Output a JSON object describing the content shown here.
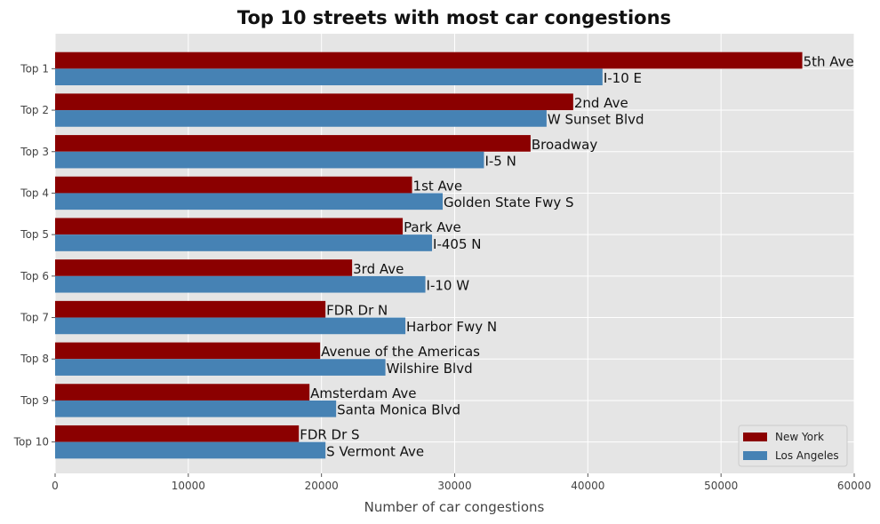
{
  "chart_data": {
    "type": "bar",
    "orientation": "horizontal",
    "title": "Top 10 streets with most car congestions",
    "xlabel": "Number of car congestions",
    "ylabel": "",
    "xlim": [
      0,
      60000
    ],
    "x_ticks": [
      "0",
      "10000",
      "20000",
      "30000",
      "40000",
      "50000",
      "60000"
    ],
    "categories": [
      "Top 1",
      "Top 2",
      "Top 3",
      "Top 4",
      "Top 5",
      "Top 6",
      "Top 7",
      "Top 8",
      "Top 9",
      "Top 10"
    ],
    "grid": true,
    "legend_position": "lower-right",
    "series": [
      {
        "name": "New York",
        "color": "#8b0000",
        "values": [
          56100,
          38900,
          35700,
          26800,
          26100,
          22300,
          20300,
          19900,
          19100,
          18300
        ],
        "labels": [
          "5th Ave",
          "2nd Ave",
          "Broadway",
          "1st Ave",
          "Park Ave",
          "3rd Ave",
          "FDR Dr N",
          "Avenue of the Americas",
          "Amsterdam Ave",
          "FDR Dr S"
        ]
      },
      {
        "name": "Los Angeles",
        "color": "#4682b4",
        "values": [
          41100,
          36900,
          32200,
          29100,
          28300,
          27800,
          26300,
          24800,
          21100,
          20300
        ],
        "labels": [
          "I-10 E",
          "W Sunset Blvd",
          "I-5 N",
          "Golden State Fwy S",
          "I-405 N",
          "I-10 W",
          "Harbor Fwy N",
          "Wilshire Blvd",
          "Santa Monica Blvd",
          "S Vermont Ave"
        ]
      }
    ]
  }
}
